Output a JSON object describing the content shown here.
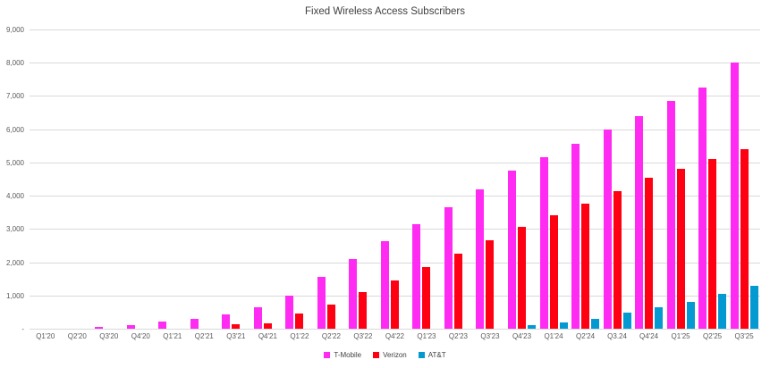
{
  "colors": {
    "tmobile": "#FF2BF2",
    "verizon": "#FF0013",
    "att": "#0599D2",
    "gridline": "#D9D9D9",
    "axis_text": "#595959",
    "title_text": "#404040",
    "background": "#FFFFFF"
  },
  "chart_data": {
    "type": "bar",
    "title": "Fixed Wireless Access Subscribers",
    "xlabel": "",
    "ylabel": "",
    "ylim": [
      0,
      9000
    ],
    "y_tick_step": 1000,
    "grid": "horizontal",
    "legend_position": "bottom",
    "y_ticks": [
      {
        "value": 9000,
        "label": "9,000"
      },
      {
        "value": 8000,
        "label": "8,000"
      },
      {
        "value": 7000,
        "label": "7,000"
      },
      {
        "value": 6000,
        "label": "6,000"
      },
      {
        "value": 5000,
        "label": "5,000"
      },
      {
        "value": 4000,
        "label": "4,000"
      },
      {
        "value": 3000,
        "label": "3,000"
      },
      {
        "value": 2000,
        "label": "2,000"
      },
      {
        "value": 1000,
        "label": "1,000"
      },
      {
        "value": 0,
        "label": "-"
      }
    ],
    "categories": [
      "Q1'20",
      "Q2'20",
      "Q3'20",
      "Q4'20",
      "Q1'21",
      "Q2'21",
      "Q3'21",
      "Q4'21",
      "Q1'22",
      "Q2'22",
      "Q3'22",
      "Q4'22",
      "Q1'23",
      "Q2'23",
      "Q3'23",
      "Q4'23",
      "Q1'24",
      "Q2'24",
      "Q3.24",
      "Q4'24",
      "Q1'25",
      "Q2'25",
      "Q3'25"
    ],
    "series": [
      {
        "name": "T-Mobile",
        "color_key": "tmobile",
        "values": [
          0,
          0,
          50,
          120,
          215,
          300,
          430,
          650,
          1000,
          1550,
          2100,
          2625,
          3150,
          3650,
          4200,
          4750,
          5150,
          5550,
          6000,
          6400,
          6850,
          7250,
          8000
        ]
      },
      {
        "name": "Verizon",
        "color_key": "verizon",
        "values": [
          0,
          0,
          0,
          0,
          0,
          0,
          130,
          150,
          445,
          725,
          1090,
          1450,
          1850,
          2250,
          2650,
          3050,
          3400,
          3750,
          4150,
          4550,
          4800,
          5100,
          5400
        ]
      },
      {
        "name": "AT&T",
        "color_key": "att",
        "values": [
          0,
          0,
          0,
          0,
          0,
          0,
          0,
          0,
          0,
          0,
          0,
          0,
          0,
          0,
          0,
          100,
          200,
          300,
          475,
          650,
          800,
          1050,
          1300
        ]
      }
    ]
  },
  "legend": {
    "items": [
      {
        "label": "T-Mobile",
        "color_key": "tmobile"
      },
      {
        "label": "Verizon",
        "color_key": "verizon"
      },
      {
        "label": "AT&T",
        "color_key": "att"
      }
    ]
  }
}
